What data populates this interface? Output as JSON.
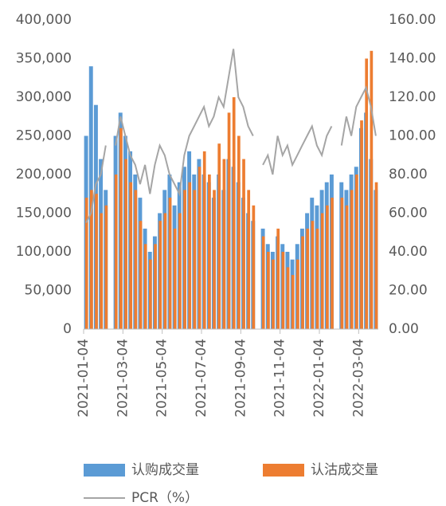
{
  "chart_data": {
    "type": "bar-line",
    "categories": [
      "2021-01-04",
      null,
      null,
      null,
      null,
      null,
      null,
      null,
      "2021-03-04",
      null,
      null,
      null,
      null,
      null,
      null,
      null,
      "2021-05-04",
      null,
      null,
      null,
      null,
      null,
      null,
      null,
      "2021-07-04",
      null,
      null,
      null,
      null,
      null,
      null,
      null,
      "2021-09-04",
      null,
      null,
      null,
      null,
      null,
      null,
      null,
      "2021-11-04",
      null,
      null,
      null,
      null,
      null,
      null,
      null,
      "2022-01-04",
      null,
      null,
      null,
      null,
      null,
      null,
      null,
      "2022-03-04",
      null,
      null,
      null
    ],
    "series": [
      {
        "name": "认购成交量",
        "type": "bar",
        "color": "#5b9bd5",
        "values": [
          250000,
          340000,
          290000,
          220000,
          180000,
          null,
          250000,
          280000,
          250000,
          230000,
          200000,
          170000,
          130000,
          100000,
          120000,
          150000,
          180000,
          200000,
          160000,
          190000,
          210000,
          230000,
          200000,
          220000,
          200000,
          190000,
          170000,
          200000,
          180000,
          220000,
          210000,
          190000,
          170000,
          150000,
          140000,
          null,
          130000,
          110000,
          100000,
          120000,
          110000,
          100000,
          90000,
          110000,
          130000,
          150000,
          170000,
          160000,
          180000,
          190000,
          200000,
          null,
          190000,
          180000,
          200000,
          210000,
          260000,
          280000,
          220000,
          180000
        ]
      },
      {
        "name": "认沽成交量",
        "type": "bar",
        "color": "#ed7d31",
        "values": [
          170000,
          180000,
          175000,
          150000,
          160000,
          null,
          200000,
          260000,
          220000,
          190000,
          180000,
          140000,
          110000,
          90000,
          110000,
          140000,
          150000,
          170000,
          130000,
          150000,
          180000,
          190000,
          180000,
          210000,
          230000,
          200000,
          180000,
          240000,
          220000,
          280000,
          300000,
          250000,
          220000,
          180000,
          160000,
          null,
          120000,
          100000,
          90000,
          130000,
          100000,
          80000,
          70000,
          90000,
          120000,
          130000,
          140000,
          130000,
          150000,
          160000,
          170000,
          null,
          170000,
          160000,
          180000,
          200000,
          270000,
          350000,
          360000,
          190000
        ]
      },
      {
        "name": "PCR（%）",
        "type": "line",
        "axis": "y2",
        "color": "#a5a5a5",
        "values": [
          55,
          60,
          75,
          80,
          95,
          null,
          95,
          110,
          100,
          90,
          85,
          75,
          85,
          70,
          85,
          95,
          90,
          80,
          75,
          70,
          90,
          100,
          105,
          110,
          115,
          105,
          110,
          120,
          115,
          130,
          145,
          120,
          115,
          105,
          100,
          null,
          85,
          90,
          80,
          100,
          90,
          95,
          85,
          90,
          95,
          100,
          105,
          95,
          90,
          100,
          105,
          null,
          95,
          110,
          100,
          115,
          120,
          125,
          115,
          100
        ]
      }
    ],
    "ylim": [
      0,
      400000
    ],
    "yticks": [
      0,
      {
        "value": 50000,
        "label": "50,000"
      },
      {
        "value": 100000,
        "label": "100,000"
      },
      {
        "value": 150000,
        "label": "150,000"
      },
      {
        "value": 200000,
        "label": "200,000"
      },
      {
        "value": 250000,
        "label": "250,000"
      },
      {
        "value": 300000,
        "label": "300,000"
      },
      {
        "value": 350000,
        "label": "350,000"
      },
      {
        "value": 400000,
        "label": "400,000"
      }
    ],
    "y2lim": [
      0,
      160
    ],
    "y2ticks": [
      {
        "value": 0,
        "label": "0.00"
      },
      {
        "value": 20,
        "label": "20.00"
      },
      {
        "value": 40,
        "label": "40.00"
      },
      {
        "value": 60,
        "label": "60.00"
      },
      {
        "value": 80,
        "label": "80.00"
      },
      {
        "value": 100,
        "label": "100.00"
      },
      {
        "value": 120,
        "label": "120.00"
      },
      {
        "value": 140,
        "label": "140.00"
      },
      {
        "value": 160,
        "label": "160.00"
      }
    ],
    "legend": "bottom"
  }
}
